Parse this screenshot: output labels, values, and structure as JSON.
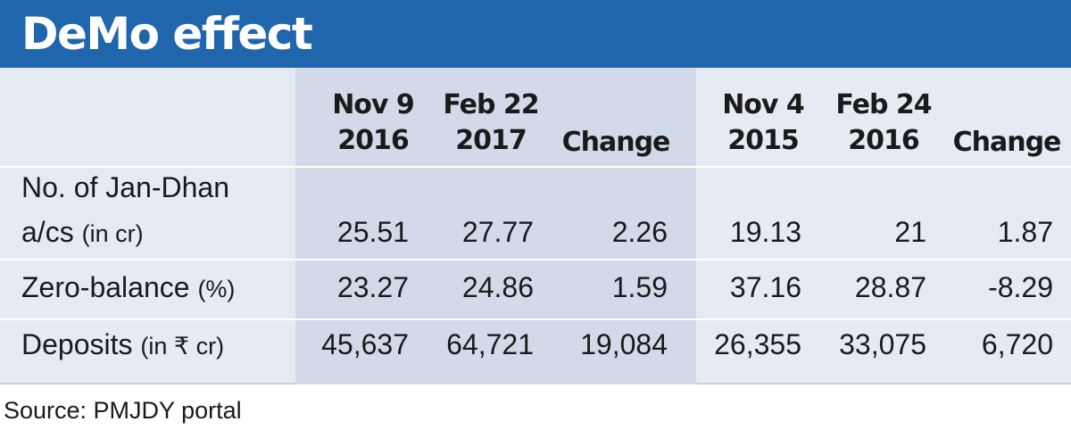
{
  "title": "DeMo effect",
  "source": "Source: PMJDY portal",
  "chart_data": {
    "type": "table",
    "title": "DeMo effect",
    "columns": [
      {
        "line1": "Nov 9",
        "line2": "2016"
      },
      {
        "line1": "Feb 22",
        "line2": "2017"
      },
      {
        "line1": "",
        "line2": "Change"
      },
      {
        "line1": "Nov 4",
        "line2": "2015"
      },
      {
        "line1": "Feb 24",
        "line2": "2016"
      },
      {
        "line1": "",
        "line2": "Change"
      }
    ],
    "rows": [
      {
        "label_line1": "No. of Jan-Dhan",
        "label_main": "a/cs",
        "label_unit": "(in cr)",
        "values": [
          "25.51",
          "27.77",
          "2.26",
          "19.13",
          "21",
          "1.87"
        ]
      },
      {
        "label_line1": "",
        "label_main": "Zero-balance",
        "label_unit": "(%)",
        "values": [
          "23.27",
          "24.86",
          "1.59",
          "37.16",
          "28.87",
          "-8.29"
        ]
      },
      {
        "label_line1": "",
        "label_main": "Deposits",
        "label_unit": "(in ₹ cr)",
        "values": [
          "45,637",
          "64,721",
          "19,084",
          "26,355",
          "33,075",
          "6,720"
        ]
      }
    ],
    "source": "Source: PMJDY portal"
  }
}
